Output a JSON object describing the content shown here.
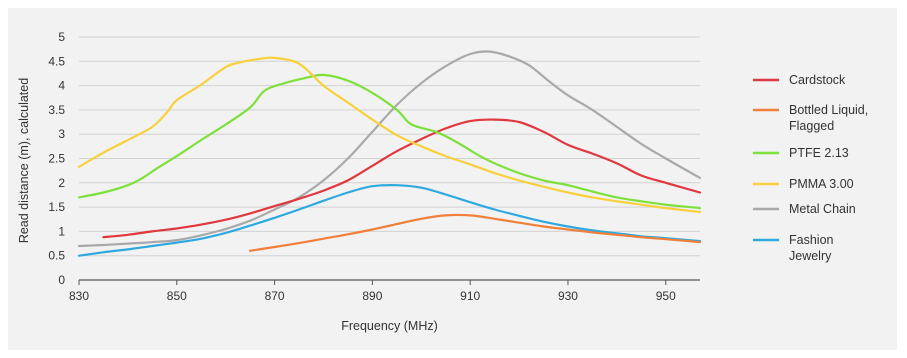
{
  "chart_data": {
    "type": "line",
    "xlabel": "Frequency (MHz)",
    "ylabel": "Read distance (m), calculated",
    "xlim": [
      830,
      957
    ],
    "ylim": [
      0,
      5
    ],
    "x_ticks": [
      "830",
      "850",
      "870",
      "890",
      "910",
      "930",
      "950"
    ],
    "y_ticks": [
      "0",
      "0.5",
      "1",
      "1.5",
      "2",
      "2.5",
      "3",
      "3.5",
      "4",
      "4.5",
      "5"
    ],
    "grid": "horizontal",
    "legend_position": "right",
    "series": [
      {
        "name": "Cardstock",
        "color": "#e0383e",
        "points": [
          [
            835,
            0.88
          ],
          [
            840,
            0.93
          ],
          [
            845,
            1.0
          ],
          [
            850,
            1.06
          ],
          [
            855,
            1.14
          ],
          [
            860,
            1.24
          ],
          [
            865,
            1.37
          ],
          [
            870,
            1.52
          ],
          [
            875,
            1.67
          ],
          [
            880,
            1.84
          ],
          [
            885,
            2.05
          ],
          [
            890,
            2.35
          ],
          [
            895,
            2.65
          ],
          [
            900,
            2.9
          ],
          [
            905,
            3.12
          ],
          [
            910,
            3.27
          ],
          [
            915,
            3.3
          ],
          [
            920,
            3.25
          ],
          [
            925,
            3.05
          ],
          [
            930,
            2.78
          ],
          [
            935,
            2.6
          ],
          [
            940,
            2.4
          ],
          [
            945,
            2.15
          ],
          [
            950,
            2.0
          ],
          [
            957,
            1.8
          ]
        ]
      },
      {
        "name": "Bottled Liquid, Flagged",
        "color": "#f07f3a",
        "points": [
          [
            865,
            0.6
          ],
          [
            870,
            0.68
          ],
          [
            875,
            0.76
          ],
          [
            880,
            0.85
          ],
          [
            885,
            0.94
          ],
          [
            890,
            1.04
          ],
          [
            895,
            1.15
          ],
          [
            900,
            1.26
          ],
          [
            905,
            1.33
          ],
          [
            910,
            1.33
          ],
          [
            915,
            1.26
          ],
          [
            920,
            1.18
          ],
          [
            925,
            1.1
          ],
          [
            930,
            1.04
          ],
          [
            935,
            0.98
          ],
          [
            940,
            0.93
          ],
          [
            945,
            0.88
          ],
          [
            950,
            0.84
          ],
          [
            957,
            0.78
          ]
        ]
      },
      {
        "name": "PTFE 2.13",
        "color": "#7ee03a",
        "points": [
          [
            830,
            1.7
          ],
          [
            835,
            1.8
          ],
          [
            840,
            1.95
          ],
          [
            843,
            2.1
          ],
          [
            846,
            2.3
          ],
          [
            850,
            2.55
          ],
          [
            855,
            2.88
          ],
          [
            860,
            3.2
          ],
          [
            865,
            3.55
          ],
          [
            868,
            3.9
          ],
          [
            872,
            4.05
          ],
          [
            876,
            4.15
          ],
          [
            880,
            4.22
          ],
          [
            885,
            4.1
          ],
          [
            890,
            3.85
          ],
          [
            895,
            3.5
          ],
          [
            898,
            3.2
          ],
          [
            903,
            3.05
          ],
          [
            907,
            2.85
          ],
          [
            912,
            2.55
          ],
          [
            915,
            2.4
          ],
          [
            920,
            2.2
          ],
          [
            925,
            2.05
          ],
          [
            930,
            1.95
          ],
          [
            935,
            1.82
          ],
          [
            940,
            1.7
          ],
          [
            945,
            1.62
          ],
          [
            950,
            1.55
          ],
          [
            957,
            1.48
          ]
        ]
      },
      {
        "name": "PMMA 3.00",
        "color": "#f7d03c",
        "points": [
          [
            830,
            2.33
          ],
          [
            835,
            2.62
          ],
          [
            840,
            2.88
          ],
          [
            845,
            3.15
          ],
          [
            848,
            3.45
          ],
          [
            850,
            3.7
          ],
          [
            855,
            4.02
          ],
          [
            860,
            4.38
          ],
          [
            863,
            4.48
          ],
          [
            867,
            4.55
          ],
          [
            870,
            4.57
          ],
          [
            875,
            4.45
          ],
          [
            880,
            4.0
          ],
          [
            885,
            3.65
          ],
          [
            890,
            3.3
          ],
          [
            895,
            2.98
          ],
          [
            900,
            2.75
          ],
          [
            905,
            2.55
          ],
          [
            910,
            2.38
          ],
          [
            915,
            2.2
          ],
          [
            920,
            2.05
          ],
          [
            925,
            1.92
          ],
          [
            930,
            1.8
          ],
          [
            935,
            1.7
          ],
          [
            940,
            1.62
          ],
          [
            945,
            1.55
          ],
          [
            950,
            1.48
          ],
          [
            957,
            1.4
          ]
        ]
      },
      {
        "name": "Metal Chain",
        "color": "#a9a9a9",
        "points": [
          [
            830,
            0.7
          ],
          [
            835,
            0.72
          ],
          [
            840,
            0.75
          ],
          [
            845,
            0.78
          ],
          [
            850,
            0.82
          ],
          [
            855,
            0.92
          ],
          [
            860,
            1.05
          ],
          [
            865,
            1.22
          ],
          [
            870,
            1.45
          ],
          [
            875,
            1.7
          ],
          [
            880,
            2.05
          ],
          [
            885,
            2.5
          ],
          [
            890,
            3.05
          ],
          [
            895,
            3.6
          ],
          [
            900,
            4.05
          ],
          [
            905,
            4.4
          ],
          [
            910,
            4.65
          ],
          [
            914,
            4.7
          ],
          [
            918,
            4.6
          ],
          [
            922,
            4.42
          ],
          [
            926,
            4.1
          ],
          [
            930,
            3.8
          ],
          [
            935,
            3.5
          ],
          [
            940,
            3.15
          ],
          [
            945,
            2.8
          ],
          [
            950,
            2.5
          ],
          [
            957,
            2.1
          ]
        ]
      },
      {
        "name": "Fashion Jewelry",
        "color": "#2ea9e0",
        "points": [
          [
            830,
            0.5
          ],
          [
            835,
            0.57
          ],
          [
            840,
            0.63
          ],
          [
            845,
            0.7
          ],
          [
            850,
            0.77
          ],
          [
            855,
            0.85
          ],
          [
            860,
            0.97
          ],
          [
            865,
            1.12
          ],
          [
            870,
            1.28
          ],
          [
            875,
            1.45
          ],
          [
            880,
            1.63
          ],
          [
            885,
            1.8
          ],
          [
            890,
            1.93
          ],
          [
            895,
            1.95
          ],
          [
            900,
            1.9
          ],
          [
            905,
            1.76
          ],
          [
            910,
            1.6
          ],
          [
            915,
            1.45
          ],
          [
            920,
            1.32
          ],
          [
            925,
            1.2
          ],
          [
            930,
            1.1
          ],
          [
            935,
            1.02
          ],
          [
            940,
            0.96
          ],
          [
            945,
            0.9
          ],
          [
            950,
            0.86
          ],
          [
            957,
            0.8
          ]
        ]
      }
    ]
  }
}
